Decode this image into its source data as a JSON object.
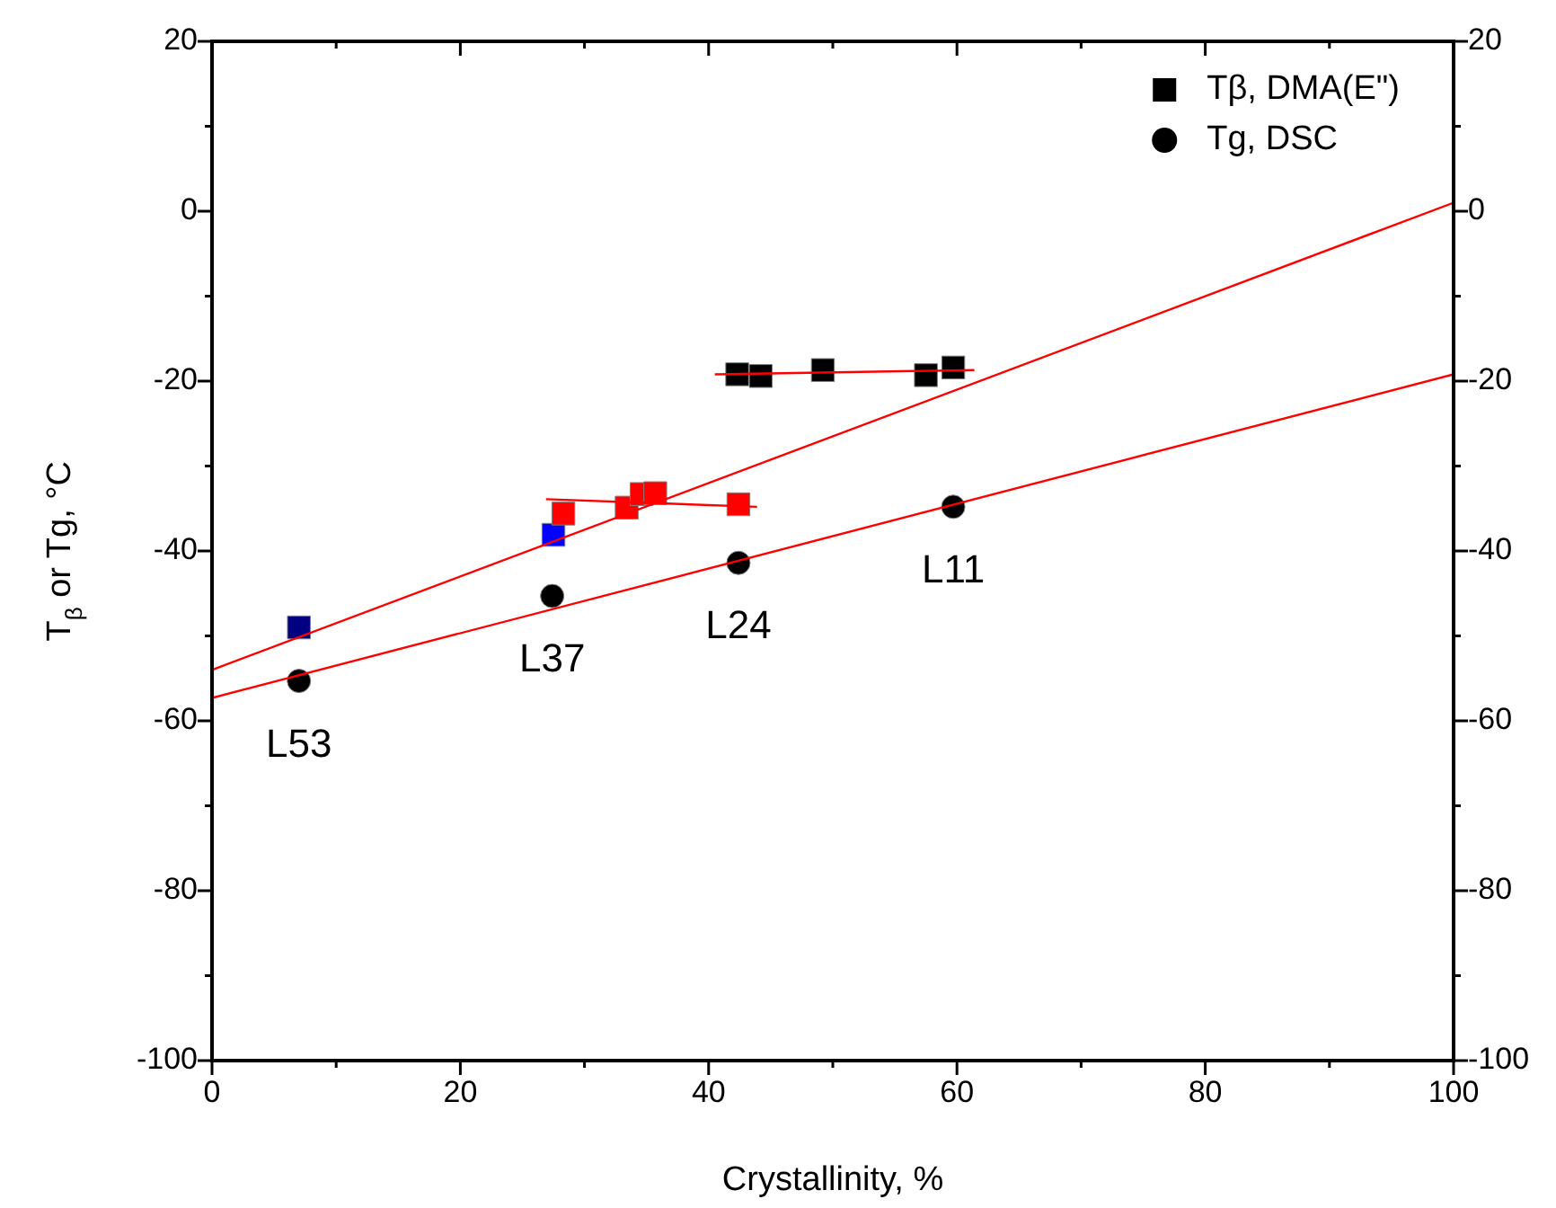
{
  "chart_data": {
    "type": "scatter",
    "xlabel": "Crystallinity, %",
    "ylabel": "T$_{β}$ or Tg, °C",
    "xlim": [
      0,
      100
    ],
    "xticks": [
      0,
      {
        "value": 10,
        "label": null
      },
      20,
      {
        "value": 30,
        "label": null
      },
      40,
      {
        "value": 50,
        "label": null
      },
      60,
      {
        "value": 70,
        "label": null
      },
      80,
      {
        "value": 90,
        "label": null
      },
      100
    ],
    "ylim": [
      -100,
      20
    ],
    "yticks": [
      -100,
      {
        "value": -90,
        "label": null
      },
      -80,
      {
        "value": -70,
        "label": null
      },
      -60,
      {
        "value": -50,
        "label": null
      },
      -40,
      {
        "value": -30,
        "label": null
      },
      -20,
      {
        "value": -10,
        "label": null
      },
      0,
      {
        "value": 10,
        "label": null
      },
      20
    ],
    "y2lim": [
      -100,
      20
    ],
    "y2ticks": [
      -100,
      {
        "value": -90,
        "label": null
      },
      -80,
      {
        "value": -70,
        "label": null
      },
      -60,
      {
        "value": -50,
        "label": null
      },
      -40,
      {
        "value": -30,
        "label": null
      },
      -20,
      {
        "value": -10,
        "label": null
      },
      0,
      {
        "value": 10,
        "label": null
      },
      20
    ],
    "grid": false,
    "legend": "top right",
    "series": [
      {
        "type": "line",
        "color": "#ff0000",
        "marker": "none",
        "x": [
          0,
          100
        ],
        "values": [
          -54,
          1
        ]
      },
      {
        "type": "line",
        "color": "#ff0000",
        "marker": "none",
        "x": [
          0,
          100
        ],
        "values": [
          -57.3,
          -19.2
        ]
      },
      {
        "type": "line",
        "color": "#ff0000",
        "marker": "none",
        "x": [
          26.9,
          43.9
        ],
        "values": [
          -33.9,
          -34.8
        ]
      },
      {
        "type": "line",
        "color": "#ff0000",
        "marker": "none",
        "x": [
          40.5,
          61.4
        ],
        "values": [
          -19.2,
          -18.7
        ]
      },
      {
        "name": "Tβ, DMA(E\")",
        "color": "#000000",
        "marker": "square",
        "x": [
          42.3,
          44.2,
          49.2,
          57.5,
          59.7
        ],
        "values": [
          -19.2,
          -19.4,
          -18.7,
          -19.3,
          -18.4
        ]
      },
      {
        "color": "#ff0000",
        "colors": [
          "#000080",
          "#0000ff",
          "#ff0000",
          "#ff0000",
          "#ff0000",
          "#ff0000",
          "#ff0000"
        ],
        "marker": "square",
        "x": [
          7.0,
          27.5,
          28.3,
          33.4,
          34.6,
          35.7,
          42.4
        ],
        "values": [
          -49.0,
          -38.1,
          -35.6,
          -34.9,
          -33.3,
          -33.2,
          -34.5
        ]
      },
      {
        "name": "Tg, DSC",
        "color": "#000000",
        "marker": "circle",
        "x": [
          7.0,
          27.4,
          42.4,
          59.7
        ],
        "values": [
          -55.3,
          -45.3,
          -41.4,
          -34.8
        ]
      }
    ],
    "annotations": [
      {
        "text": "L53",
        "x": 7.0,
        "y": -55.3
      },
      {
        "text": "L37",
        "x": 27.4,
        "y": -45.3
      },
      {
        "text": "L24",
        "x": 42.4,
        "y": -41.4
      },
      {
        "text": "L11",
        "x": 59.7,
        "y": -34.8
      }
    ]
  }
}
